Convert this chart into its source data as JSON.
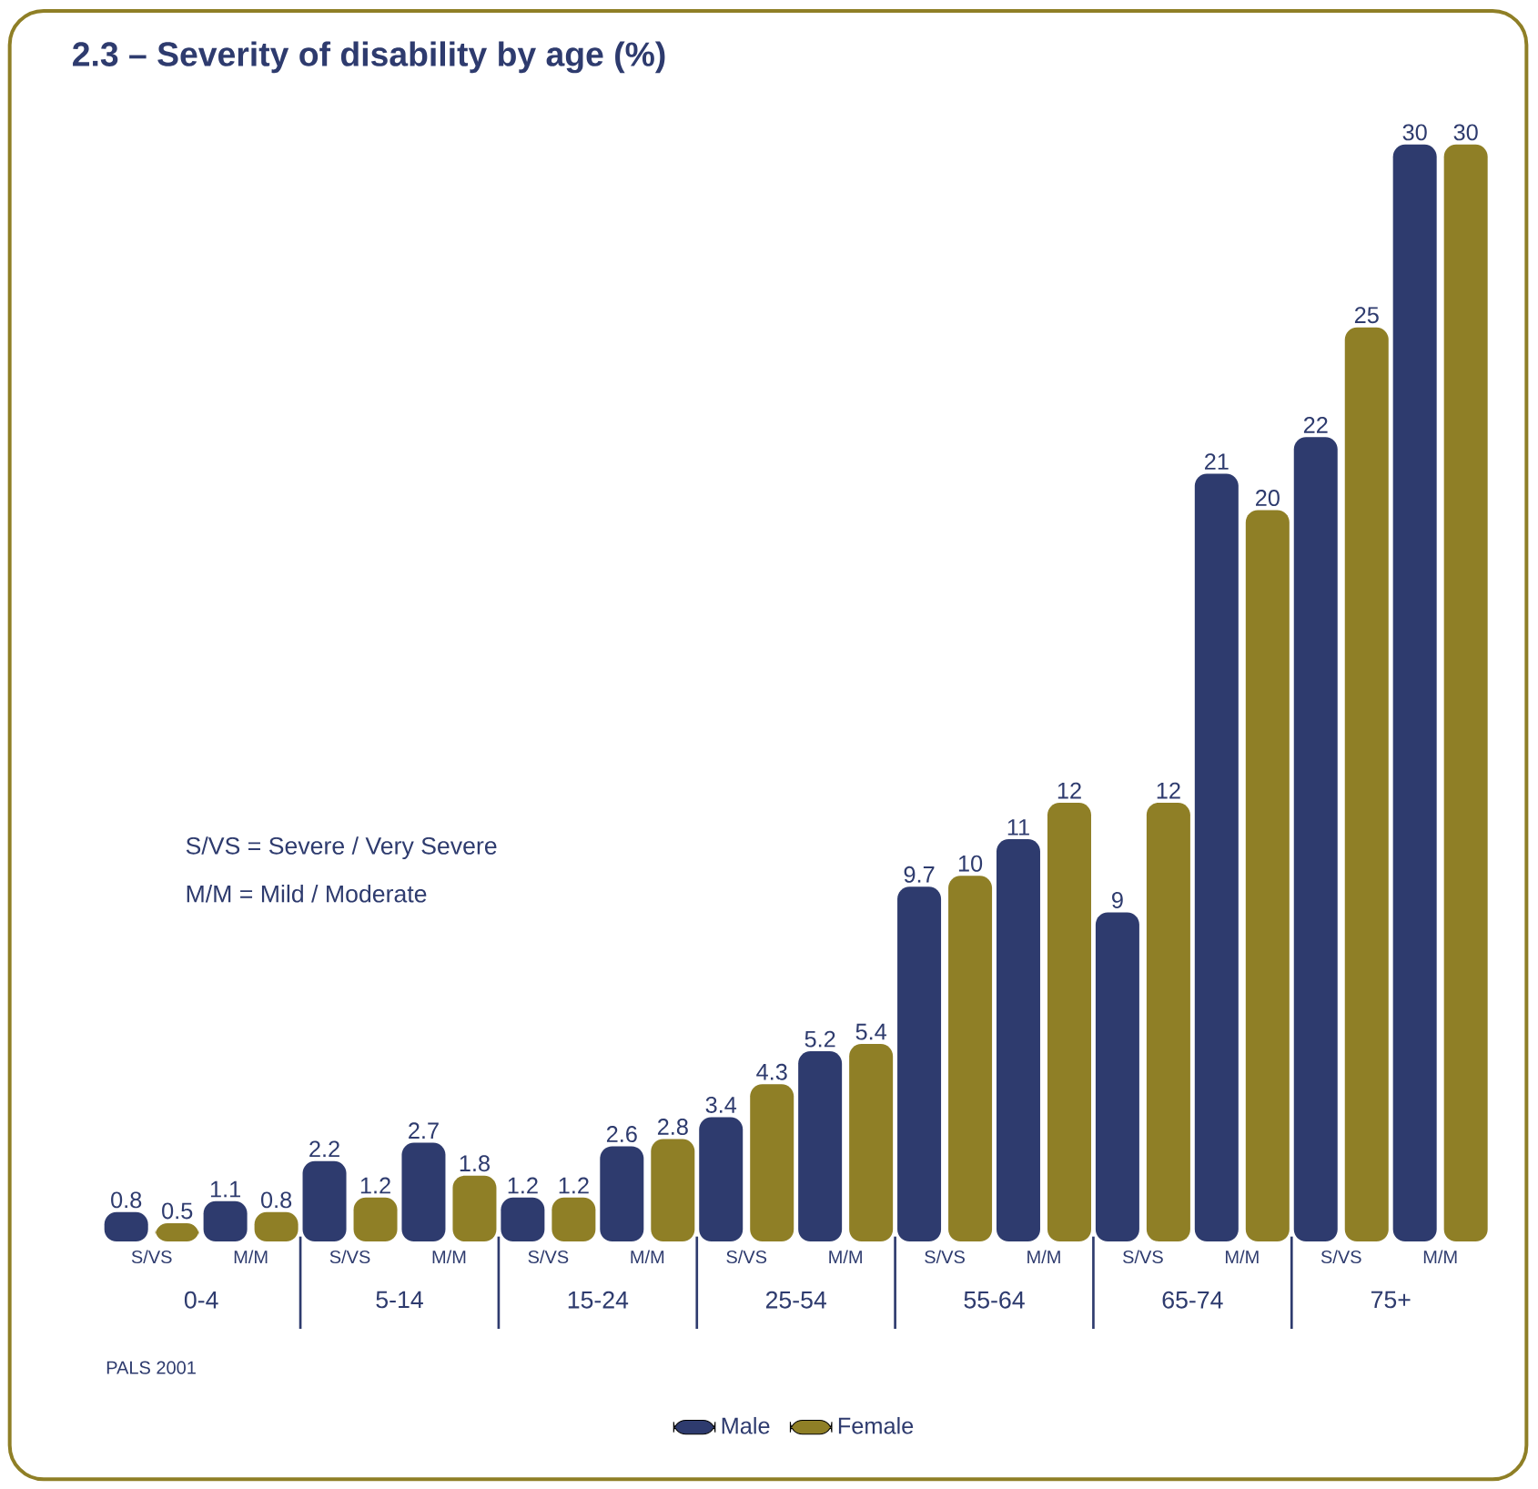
{
  "chart_data": {
    "type": "bar",
    "title": "2.3 – Severity of disability by age  (%)",
    "categories": [
      "S/VS",
      "M/M",
      "S/VS",
      "M/M",
      "S/VS",
      "M/M",
      "S/VS",
      "M/M",
      "S/VS",
      "M/M",
      "S/VS",
      "M/M",
      "S/VS",
      "M/M"
    ],
    "series": [
      {
        "name": "Male",
        "color": "#2e3b6e",
        "values": [
          0.8,
          1.1,
          2.2,
          2.7,
          1.2,
          2.6,
          3.4,
          5.2,
          9.7,
          11,
          9,
          21,
          22,
          30
        ]
      },
      {
        "name": "Female",
        "color": "#8f7f26",
        "values": [
          0.5,
          0.8,
          1.2,
          1.8,
          1.2,
          2.8,
          4.3,
          5.4,
          10,
          12,
          12,
          20,
          25,
          30
        ]
      }
    ],
    "annotations": [
      "S/VS = Severe / Very Severe",
      "M/M = Mild / Moderate",
      "PALS 2001",
      "0-4",
      "5-14",
      "15-24",
      "25-54",
      "55-64",
      "65-74",
      "75+"
    ],
    "data_labels": true,
    "legend": "bottom",
    "grid": false
  }
}
